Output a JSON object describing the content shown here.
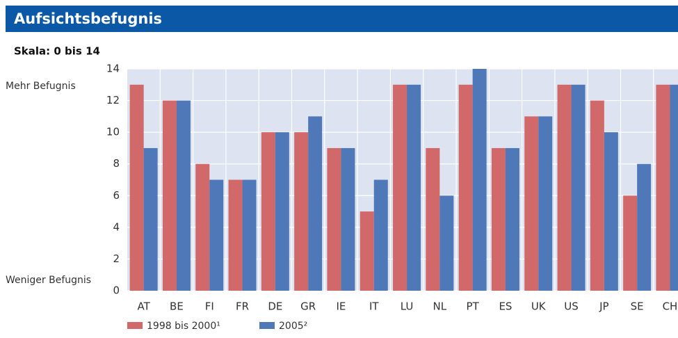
{
  "chart_data": {
    "type": "bar",
    "title": "Aufsichtsbefugnis",
    "subtitle": "Skala: 0 bis 14",
    "y_top_label": "Mehr Befugnis",
    "y_bottom_label": "Weniger Befugnis",
    "categories": [
      "AT",
      "BE",
      "FI",
      "FR",
      "DE",
      "GR",
      "IE",
      "IT",
      "LU",
      "NL",
      "PT",
      "ES",
      "UK",
      "US",
      "JP",
      "SE",
      "CH"
    ],
    "series": [
      {
        "name": "1998 bis 2000¹",
        "color": "#d1686a",
        "values": [
          13,
          12,
          8,
          7,
          10,
          10,
          9,
          5,
          13,
          9,
          13,
          9,
          11,
          13,
          12,
          6,
          13
        ]
      },
      {
        "name": "2005²",
        "color": "#4f78b8",
        "values": [
          9,
          12,
          7,
          7,
          10,
          11,
          9,
          7,
          13,
          6,
          14,
          9,
          11,
          13,
          10,
          8,
          13
        ]
      }
    ],
    "ylim": [
      0,
      14
    ],
    "yticks": [
      0,
      2,
      4,
      6,
      8,
      10,
      12,
      14
    ],
    "grid": true
  }
}
